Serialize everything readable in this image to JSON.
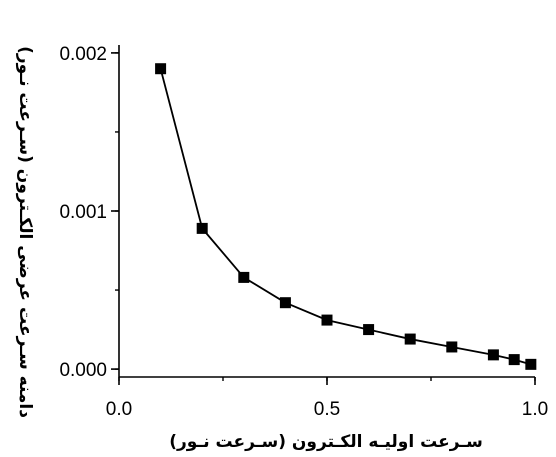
{
  "chart_data": {
    "type": "line",
    "xlabel": "سـرعت اولیـه الکـترون (سـرعت نـور)",
    "ylabel": "دامنه سـرعت عرضی الکـترون (سـرعت نـور)",
    "xlim": [
      0.0,
      1.0
    ],
    "ylim": [
      -5e-05,
      0.00205
    ],
    "x_ticks": [
      0.0,
      0.5,
      1.0
    ],
    "x_tick_labels": [
      "0.0",
      "0.5",
      "1.0"
    ],
    "y_ticks": [
      0.0,
      0.001,
      0.002
    ],
    "y_tick_labels": [
      "0.000",
      "0.001",
      "0.002"
    ],
    "grid": false,
    "series": [
      {
        "marker": "square",
        "color": "#000000",
        "x": [
          0.1,
          0.2,
          0.3,
          0.4,
          0.5,
          0.6,
          0.7,
          0.8,
          0.9,
          0.95,
          0.99
        ],
        "y": [
          0.0019,
          0.00089,
          0.00058,
          0.00042,
          0.00031,
          0.00025,
          0.00019,
          0.00014,
          9e-05,
          6e-05,
          3e-05
        ]
      }
    ]
  }
}
